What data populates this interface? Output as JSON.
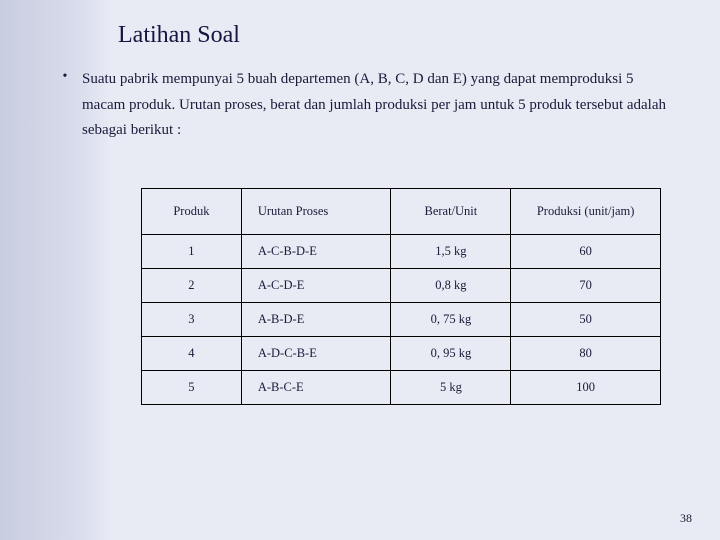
{
  "title": "Latihan Soal",
  "paragraph": "Suatu pabrik mempunyai 5 buah departemen (A, B, C, D dan E) yang dapat memproduksi 5 macam produk. Urutan proses, berat dan jumlah produksi per jam untuk 5 produk tersebut adalah sebagai berikut :",
  "table": {
    "headers": {
      "produk": "Produk",
      "urutan": "Urutan Proses",
      "berat": "Berat/Unit",
      "produksi": "Produksi (unit/jam)"
    },
    "rows": [
      {
        "produk": "1",
        "urutan": "A-C-B-D-E",
        "berat": "1,5 kg",
        "produksi": "60"
      },
      {
        "produk": "2",
        "urutan": "A-C-D-E",
        "berat": "0,8 kg",
        "produksi": "70"
      },
      {
        "produk": "3",
        "urutan": "A-B-D-E",
        "berat": "0, 75 kg",
        "produksi": "50"
      },
      {
        "produk": "4",
        "urutan": "A-D-C-B-E",
        "berat": "0, 95 kg",
        "produksi": "80"
      },
      {
        "produk": "5",
        "urutan": "A-B-C-E",
        "berat": "5 kg",
        "produksi": "100"
      }
    ]
  },
  "page_number": "38"
}
